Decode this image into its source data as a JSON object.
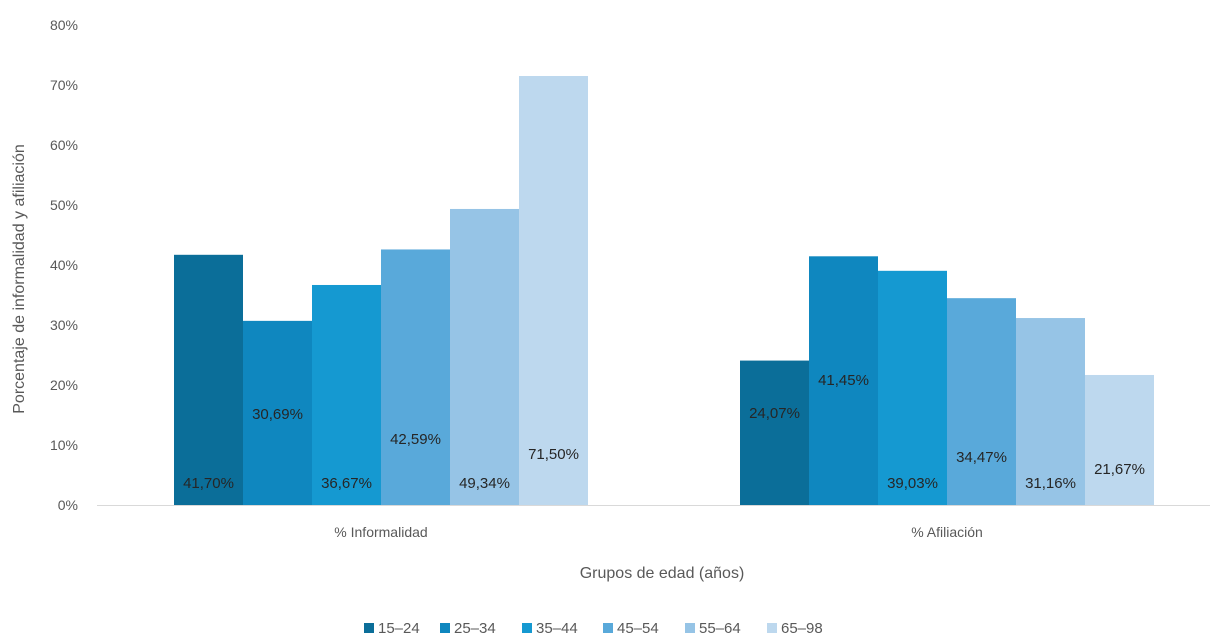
{
  "chart_data": {
    "type": "bar",
    "categories": [
      "% Informalidad",
      "% Afiliación"
    ],
    "series": [
      {
        "name": "15–24",
        "values": [
          41.7,
          24.07
        ],
        "labels": [
          "41,70%",
          "24,07%"
        ],
        "color": "#0b6e99"
      },
      {
        "name": "25–34",
        "values": [
          30.69,
          41.45
        ],
        "labels": [
          "30,69%",
          "41,45%"
        ],
        "color": "#0f87bf"
      },
      {
        "name": "35–44",
        "values": [
          36.67,
          39.03
        ],
        "labels": [
          "36,67%",
          "39,03%"
        ],
        "color": "#1599d1"
      },
      {
        "name": "45–54",
        "values": [
          42.59,
          34.47
        ],
        "labels": [
          "42,59%",
          "34,47%"
        ],
        "color": "#59a9da"
      },
      {
        "name": "55–64",
        "values": [
          49.34,
          31.16
        ],
        "labels": [
          "49,34%",
          "31,16%"
        ],
        "color": "#96c4e6"
      },
      {
        "name": "65–98",
        "values": [
          71.5,
          21.67
        ],
        "labels": [
          "71,50%",
          "21,67%"
        ],
        "color": "#bdd8ee"
      }
    ],
    "ylim": [
      0,
      80
    ],
    "yticks": [
      "0%",
      "10%",
      "20%",
      "30%",
      "40%",
      "50%",
      "60%",
      "70%",
      "80%"
    ],
    "xlabel": "Grupos de edad (años)",
    "ylabel": "Porcentaje de informalidad y afiliación",
    "legend_position": "bottom",
    "grid": false
  }
}
